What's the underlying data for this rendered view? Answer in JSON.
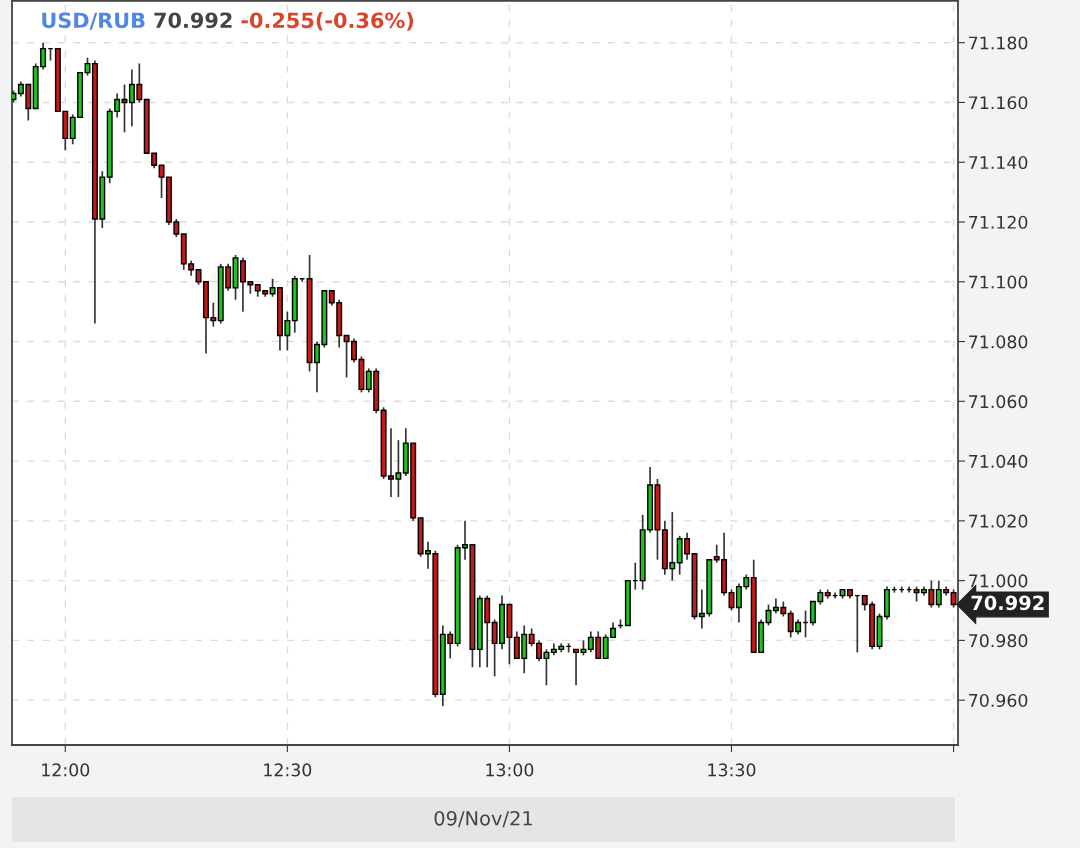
{
  "chart_data": {
    "type": "candlestick",
    "title": "USD/RUB",
    "subtitle": "70.992",
    "annotations": [
      "-0.255(-0.36%)",
      {
        "text": "70.992",
        "x": 14.0,
        "y": 70.992
      }
    ],
    "xlabel": "09/Nov/21",
    "x": [
      11.8833,
      11.9,
      11.9167,
      11.9333,
      11.95,
      11.9667,
      11.9833,
      12.0,
      12.0167,
      12.0333,
      12.05,
      12.0667,
      12.0833,
      12.1,
      12.1167,
      12.1333,
      12.15,
      12.1667,
      12.1833,
      12.2,
      12.2167,
      12.2333,
      12.25,
      12.2667,
      12.2833,
      12.3,
      12.3167,
      12.3333,
      12.35,
      12.3667,
      12.3833,
      12.4,
      12.4167,
      12.4333,
      12.45,
      12.4667,
      12.4833,
      12.5,
      12.5167,
      12.5333,
      12.55,
      12.5667,
      12.5833,
      12.6,
      12.6167,
      12.6333,
      12.65,
      12.6667,
      12.6833,
      12.7,
      12.7167,
      12.7333,
      12.75,
      12.7667,
      12.7833,
      12.8,
      12.8167,
      12.8333,
      12.85,
      12.8667,
      12.8833,
      12.9,
      12.9167,
      12.9333,
      12.95,
      12.9667,
      12.9833,
      13.0,
      13.0167,
      13.0333,
      13.05,
      13.0667,
      13.0833,
      13.1,
      13.1167,
      13.1333,
      13.15,
      13.1667,
      13.1833,
      13.2,
      13.2167,
      13.2333,
      13.25,
      13.2667,
      13.2833,
      13.3,
      13.3167,
      13.3333,
      13.35,
      13.3667,
      13.3833,
      13.4,
      13.4167,
      13.4333,
      13.45,
      13.4667,
      13.4833,
      13.5,
      13.5167,
      13.5333,
      13.55,
      13.5667,
      13.5833,
      13.6,
      13.6167,
      13.6333,
      13.65,
      13.6667,
      13.6833,
      13.7,
      13.7167,
      13.7333,
      13.75,
      13.7667,
      13.7833,
      13.8,
      13.8167,
      13.8333,
      13.85,
      13.8667,
      13.8833,
      13.9,
      13.9167,
      13.9333,
      13.95,
      13.9667,
      13.9833,
      14.0
    ],
    "ohlc": [
      [
        71.161,
        71.164,
        71.16,
        71.163
      ],
      [
        71.163,
        71.167,
        71.162,
        71.166
      ],
      [
        71.166,
        71.166,
        71.154,
        71.158
      ],
      [
        71.158,
        71.173,
        71.158,
        71.172
      ],
      [
        71.172,
        71.18,
        71.171,
        71.178
      ],
      [
        71.178,
        71.178,
        71.174,
        71.178
      ],
      [
        71.178,
        71.178,
        71.157,
        71.157
      ],
      [
        71.157,
        71.157,
        71.144,
        71.148
      ],
      [
        71.148,
        71.156,
        71.146,
        71.155
      ],
      [
        71.155,
        71.17,
        71.155,
        71.17
      ],
      [
        71.17,
        71.175,
        71.169,
        71.173
      ],
      [
        71.173,
        71.174,
        71.086,
        71.121
      ],
      [
        71.121,
        71.137,
        71.118,
        71.135
      ],
      [
        71.135,
        71.158,
        71.133,
        71.157
      ],
      [
        71.157,
        71.163,
        71.155,
        71.161
      ],
      [
        71.161,
        71.166,
        71.15,
        71.16
      ],
      [
        71.16,
        71.171,
        71.152,
        71.166
      ],
      [
        71.166,
        71.173,
        71.16,
        71.161
      ],
      [
        71.161,
        71.161,
        71.143,
        71.143
      ],
      [
        71.143,
        71.143,
        71.138,
        71.139
      ],
      [
        71.139,
        71.139,
        71.128,
        71.135
      ],
      [
        71.135,
        71.135,
        71.119,
        71.12
      ],
      [
        71.12,
        71.121,
        71.115,
        71.116
      ],
      [
        71.116,
        71.116,
        71.104,
        71.106
      ],
      [
        71.106,
        71.107,
        71.102,
        71.104
      ],
      [
        71.104,
        71.104,
        71.099,
        71.1
      ],
      [
        71.1,
        71.1,
        71.076,
        71.088
      ],
      [
        71.088,
        71.093,
        71.085,
        71.087
      ],
      [
        71.087,
        71.106,
        71.086,
        71.105
      ],
      [
        71.105,
        71.106,
        71.097,
        71.098
      ],
      [
        71.098,
        71.109,
        71.094,
        71.108
      ],
      [
        71.107,
        71.108,
        71.09,
        71.1
      ],
      [
        71.1,
        71.1,
        71.096,
        71.099
      ],
      [
        71.099,
        71.099,
        71.095,
        71.097
      ],
      [
        71.097,
        71.097,
        71.095,
        71.096
      ],
      [
        71.096,
        71.101,
        71.095,
        71.098
      ],
      [
        71.098,
        71.098,
        71.077,
        71.082
      ],
      [
        71.082,
        71.09,
        71.077,
        71.087
      ],
      [
        71.087,
        71.102,
        71.083,
        71.101
      ],
      [
        71.101,
        71.101,
        71.1,
        71.101
      ],
      [
        71.101,
        71.109,
        71.07,
        71.073
      ],
      [
        71.073,
        71.08,
        71.063,
        71.079
      ],
      [
        71.079,
        71.097,
        71.078,
        71.097
      ],
      [
        71.097,
        71.097,
        71.092,
        71.093
      ],
      [
        71.093,
        71.094,
        71.078,
        71.082
      ],
      [
        71.082,
        71.082,
        71.068,
        71.08
      ],
      [
        71.08,
        71.081,
        71.073,
        71.074
      ],
      [
        71.074,
        71.075,
        71.063,
        71.064
      ],
      [
        71.064,
        71.071,
        71.063,
        71.07
      ],
      [
        71.07,
        71.071,
        71.056,
        71.057
      ],
      [
        71.057,
        71.058,
        71.034,
        71.035
      ],
      [
        71.035,
        71.051,
        71.028,
        71.034
      ],
      [
        71.034,
        71.047,
        71.028,
        71.036
      ],
      [
        71.036,
        71.051,
        71.035,
        71.046
      ],
      [
        71.046,
        71.046,
        71.02,
        71.021
      ],
      [
        71.021,
        71.021,
        71.008,
        71.009
      ],
      [
        71.009,
        71.013,
        71.004,
        71.01
      ],
      [
        71.009,
        71.01,
        70.961,
        70.962
      ],
      [
        70.962,
        70.985,
        70.958,
        70.982
      ],
      [
        70.982,
        70.983,
        70.974,
        70.979
      ],
      [
        70.979,
        71.012,
        70.978,
        71.011
      ],
      [
        71.011,
        71.02,
        71.007,
        71.012
      ],
      [
        71.012,
        71.012,
        70.971,
        70.977
      ],
      [
        70.977,
        70.995,
        70.971,
        70.994
      ],
      [
        70.994,
        70.995,
        70.971,
        70.986
      ],
      [
        70.986,
        70.987,
        70.968,
        70.979
      ],
      [
        70.979,
        70.995,
        70.977,
        70.992
      ],
      [
        70.992,
        70.992,
        70.972,
        70.981
      ],
      [
        70.981,
        70.983,
        70.974,
        70.974
      ],
      [
        70.974,
        70.985,
        70.969,
        70.982
      ],
      [
        70.982,
        70.984,
        70.978,
        70.979
      ],
      [
        70.979,
        70.98,
        70.973,
        70.974
      ],
      [
        70.974,
        70.977,
        70.965,
        70.976
      ],
      [
        70.976,
        70.979,
        70.975,
        70.977
      ],
      [
        70.977,
        70.979,
        70.976,
        70.978
      ],
      [
        70.978,
        70.979,
        70.976,
        70.978
      ],
      [
        70.977,
        70.977,
        70.965,
        70.976
      ],
      [
        70.976,
        70.98,
        70.975,
        70.977
      ],
      [
        70.977,
        70.983,
        70.976,
        70.981
      ],
      [
        70.981,
        70.983,
        70.974,
        70.974
      ],
      [
        70.974,
        70.982,
        70.974,
        70.981
      ],
      [
        70.981,
        70.986,
        70.981,
        70.984
      ],
      [
        70.985,
        70.987,
        70.984,
        70.985
      ],
      [
        70.985,
        71.0,
        70.985,
        71.0
      ],
      [
        71.0,
        71.006,
        70.997,
        71.0
      ],
      [
        71.0,
        71.022,
        70.997,
        71.017
      ],
      [
        71.017,
        71.038,
        71.016,
        71.032
      ],
      [
        71.032,
        71.034,
        71.007,
        71.017
      ],
      [
        71.017,
        71.02,
        71.002,
        71.004
      ],
      [
        71.004,
        71.023,
        71.0,
        71.006
      ],
      [
        71.006,
        71.015,
        71.002,
        71.014
      ],
      [
        71.014,
        71.016,
        71.007,
        71.009
      ],
      [
        71.009,
        71.009,
        70.987,
        70.988
      ],
      [
        70.988,
        70.997,
        70.984,
        70.989
      ],
      [
        70.989,
        71.007,
        70.988,
        71.007
      ],
      [
        71.008,
        71.012,
        71.006,
        71.007
      ],
      [
        71.007,
        71.016,
        70.995,
        70.996
      ],
      [
        70.996,
        70.997,
        70.99,
        70.991
      ],
      [
        70.991,
        70.999,
        70.986,
        70.998
      ],
      [
        70.998,
        71.002,
        70.997,
        71.001
      ],
      [
        71.001,
        71.007,
        70.976,
        70.976
      ],
      [
        70.976,
        70.987,
        70.976,
        70.986
      ],
      [
        70.986,
        70.992,
        70.985,
        70.99
      ],
      [
        70.99,
        70.994,
        70.989,
        70.991
      ],
      [
        70.991,
        70.993,
        70.988,
        70.989
      ],
      [
        70.989,
        70.99,
        70.981,
        70.983
      ],
      [
        70.983,
        70.987,
        70.982,
        70.986
      ],
      [
        70.986,
        70.99,
        70.981,
        70.986
      ],
      [
        70.986,
        70.993,
        70.985,
        70.993
      ],
      [
        70.993,
        70.997,
        70.992,
        70.996
      ],
      [
        70.996,
        70.997,
        70.994,
        70.995
      ],
      [
        70.995,
        70.996,
        70.994,
        70.995
      ],
      [
        70.995,
        70.997,
        70.994,
        70.997
      ],
      [
        70.997,
        70.997,
        70.994,
        70.995
      ],
      [
        70.995,
        70.995,
        70.976,
        70.995
      ],
      [
        70.995,
        70.995,
        70.99,
        70.992
      ],
      [
        70.992,
        70.993,
        70.977,
        70.978
      ],
      [
        70.978,
        70.989,
        70.977,
        70.988
      ],
      [
        70.988,
        70.998,
        70.987,
        70.997
      ],
      [
        70.997,
        70.998,
        70.996,
        70.997
      ],
      [
        70.997,
        70.998,
        70.996,
        70.997
      ],
      [
        70.997,
        70.998,
        70.996,
        70.997
      ],
      [
        70.997,
        70.998,
        70.993,
        70.996
      ],
      [
        70.996,
        70.998,
        70.995,
        70.997
      ],
      [
        70.997,
        71.0,
        70.991,
        70.992
      ],
      [
        70.992,
        71.0,
        70.991,
        70.997
      ],
      [
        70.997,
        70.998,
        70.995,
        70.996
      ],
      [
        70.996,
        70.997,
        70.991,
        70.992
      ]
    ],
    "xlim": [
      11.88,
      14.01
    ],
    "xticks": [
      {
        "value": 12.0,
        "label": "12:00"
      },
      {
        "value": 12.5,
        "label": "12:30"
      },
      {
        "value": 13.0,
        "label": "13:00"
      },
      {
        "value": 13.5,
        "label": "13:30"
      },
      {
        "value": 14.0,
        "label": null
      }
    ],
    "ylim": [
      70.945,
      71.194
    ],
    "yticks": [
      {
        "value": 70.96,
        "label": "70.960"
      },
      {
        "value": 70.98,
        "label": "70.980"
      },
      {
        "value": 71.0,
        "label": "71.000"
      },
      {
        "value": 71.02,
        "label": "71.020"
      },
      {
        "value": 71.04,
        "label": "71.040"
      },
      {
        "value": 71.06,
        "label": "71.060"
      },
      {
        "value": 71.08,
        "label": "71.080"
      },
      {
        "value": 71.1,
        "label": "71.100"
      },
      {
        "value": 71.12,
        "label": "71.120"
      },
      {
        "value": 71.14,
        "label": "71.140"
      },
      {
        "value": 71.16,
        "label": "71.160"
      },
      {
        "value": 71.18,
        "label": "71.180"
      }
    ],
    "grid": true
  }
}
